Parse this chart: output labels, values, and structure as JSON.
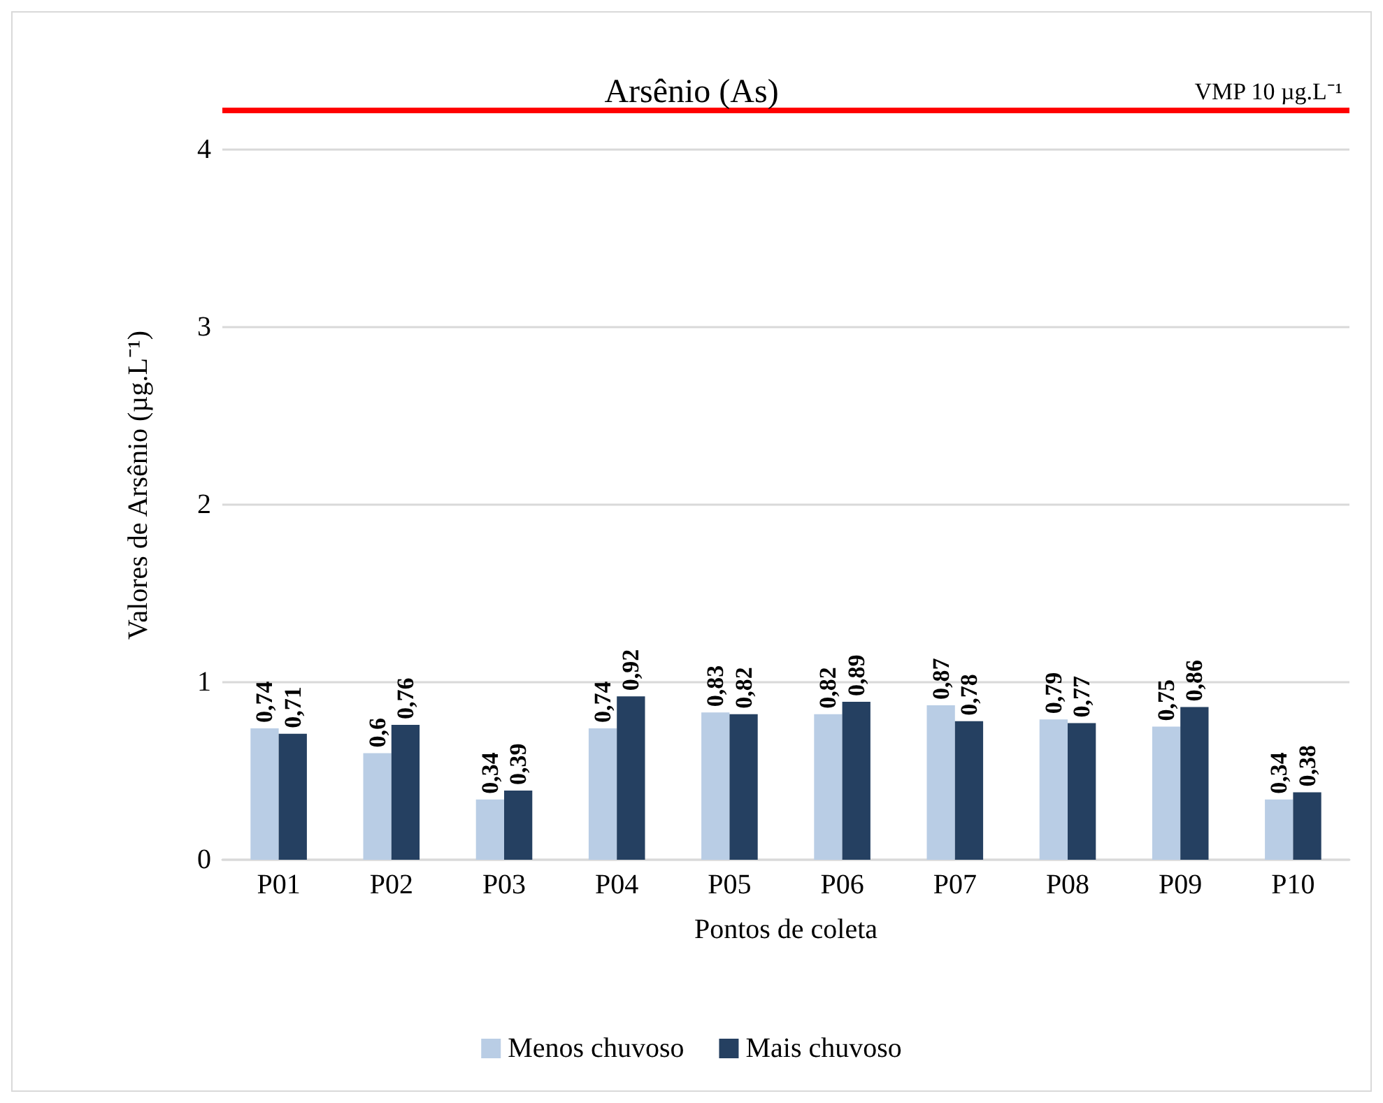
{
  "chart_data": {
    "type": "bar",
    "title": "Arsênio (As)",
    "xlabel": "Pontos de coleta",
    "ylabel": "Valores de Arsênio (µg.L⁻¹)",
    "categories": [
      "P01",
      "P02",
      "P03",
      "P04",
      "P05",
      "P06",
      "P07",
      "P08",
      "P09",
      "P10"
    ],
    "series": [
      {
        "name": "Menos chuvoso",
        "color": "#b9cde5",
        "values": [
          0.74,
          0.6,
          0.34,
          0.74,
          0.83,
          0.82,
          0.87,
          0.79,
          0.75,
          0.34
        ],
        "value_labels": [
          "0,74",
          "0,6",
          "0,34",
          "0,74",
          "0,83",
          "0,82",
          "0,87",
          "0,79",
          "0,75",
          "0,34"
        ]
      },
      {
        "name": "Mais chuvoso",
        "color": "#254061",
        "values": [
          0.71,
          0.76,
          0.39,
          0.92,
          0.82,
          0.89,
          0.78,
          0.77,
          0.86,
          0.38
        ],
        "value_labels": [
          "0,71",
          "0,76",
          "0,39",
          "0,92",
          "0,82",
          "0,89",
          "0,78",
          "0,77",
          "0,86",
          "0,38"
        ]
      }
    ],
    "ylim": [
      0,
      4.22
    ],
    "yticks": [
      0,
      1,
      2,
      3,
      4
    ],
    "grid": "y",
    "legend": "bottom",
    "ref_lines": [
      {
        "axis": "y",
        "value": 4.22,
        "label": "VMP 10 µg.L⁻¹",
        "color": "#ff0000",
        "line_style": "solid"
      }
    ]
  }
}
